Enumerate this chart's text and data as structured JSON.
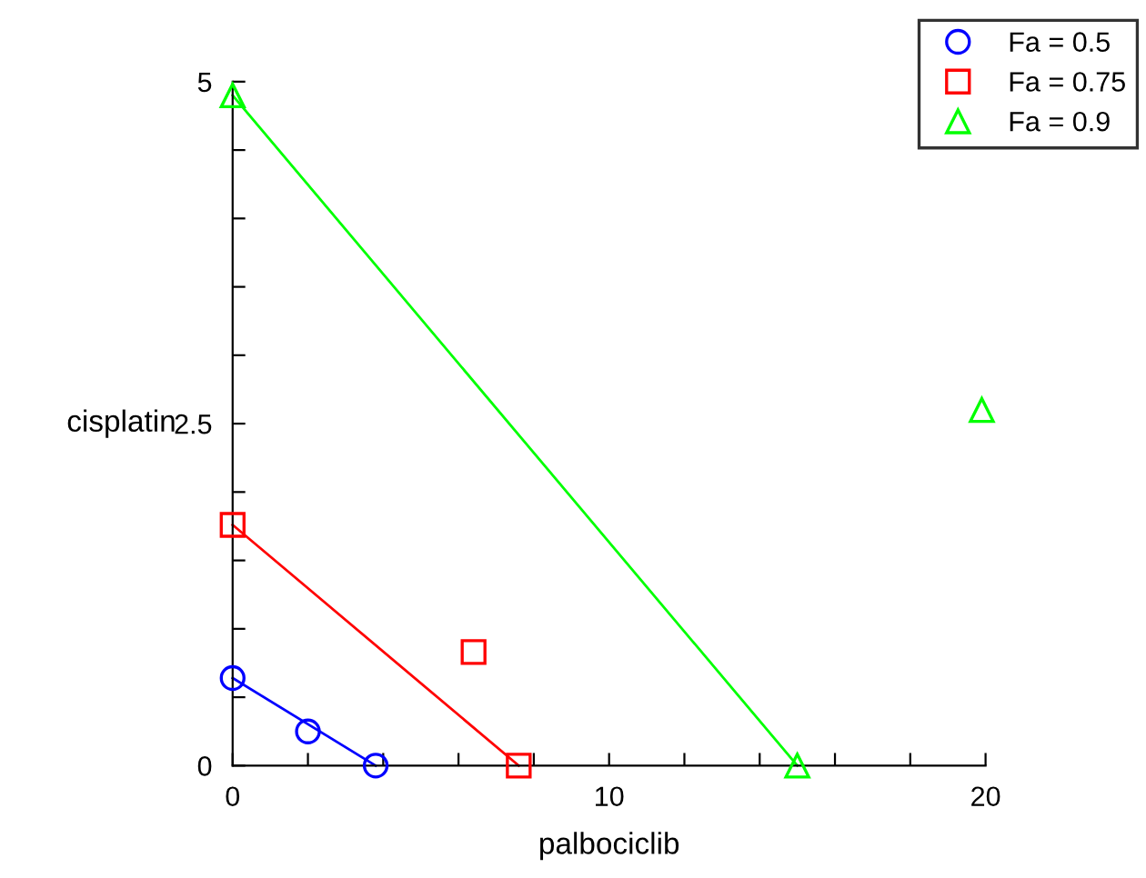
{
  "chart_data": {
    "type": "scatter",
    "xlabel": "palbociclib",
    "ylabel": "cisplatin",
    "xlim": [
      0,
      20
    ],
    "ylim": [
      0,
      5
    ],
    "xticks": [
      0,
      {
        "value": 2,
        "label": null
      },
      {
        "value": 4,
        "label": null
      },
      {
        "value": 6,
        "label": null
      },
      {
        "value": 8,
        "label": null
      },
      10,
      {
        "value": 12,
        "label": null
      },
      {
        "value": 14,
        "label": null
      },
      {
        "value": 16,
        "label": null
      },
      {
        "value": 18,
        "label": null
      },
      20
    ],
    "yticks": [
      0,
      {
        "value": 0.5,
        "label": null
      },
      {
        "value": 1,
        "label": null
      },
      {
        "value": 1.5,
        "label": null
      },
      {
        "value": 2,
        "label": null
      },
      2.5,
      {
        "value": 3,
        "label": null
      },
      {
        "value": 3.5,
        "label": null
      },
      {
        "value": 4,
        "label": null
      },
      {
        "value": 4.5,
        "label": null
      },
      5
    ],
    "grid": false,
    "legend": "top right",
    "series": [
      {
        "type": "line",
        "color": "#0000ff",
        "x": [
          0,
          3.8
        ],
        "values": [
          0.64,
          0
        ],
        "marker": "none"
      },
      {
        "type": "line",
        "color": "#ff0000",
        "x": [
          0,
          7.6
        ],
        "values": [
          1.76,
          0
        ],
        "marker": "none"
      },
      {
        "type": "line",
        "color": "#00ff00",
        "x": [
          0,
          15
        ],
        "values": [
          4.9,
          0
        ],
        "marker": "none"
      },
      {
        "name": "Fa = 0.5",
        "color": "#0000ff",
        "x": [
          0,
          2,
          3.8
        ],
        "values": [
          0.64,
          0.25,
          0
        ],
        "marker": "circle"
      },
      {
        "name": "Fa = 0.75",
        "color": "#ff0000",
        "x": [
          0,
          6.4,
          7.6
        ],
        "values": [
          1.76,
          0.83,
          0
        ],
        "marker": "square"
      },
      {
        "name": "Fa = 0.9",
        "color": "#00ff00",
        "x": [
          0,
          15,
          19.9
        ],
        "values": [
          4.9,
          0,
          2.6
        ],
        "marker": "triangle"
      }
    ]
  }
}
